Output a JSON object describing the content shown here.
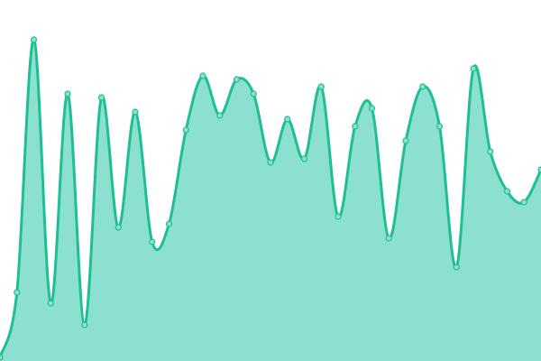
{
  "chart_data": {
    "type": "area",
    "title": "",
    "xlabel": "",
    "ylabel": "",
    "x": [
      0,
      1,
      2,
      3,
      4,
      5,
      6,
      7,
      8,
      9,
      10,
      11,
      12,
      13,
      14,
      15,
      16,
      17,
      18,
      19,
      20,
      21,
      22,
      23,
      24,
      25,
      26,
      27,
      28,
      29,
      30,
      31,
      32
    ],
    "values": [
      1,
      19,
      89,
      16,
      74,
      10,
      73,
      37,
      69,
      33,
      38,
      64,
      79,
      68,
      78,
      74,
      55,
      67,
      56,
      76,
      40,
      65,
      70,
      34,
      61,
      76,
      65,
      26,
      81,
      58,
      47,
      44,
      53
    ],
    "ylim": [
      0,
      100
    ],
    "grid": false,
    "axes_visible": false,
    "curve": "smooth",
    "colors": {
      "line": "#1fbf93",
      "fill": "#8be0cf",
      "marker_fill": "#8be0cf"
    }
  }
}
